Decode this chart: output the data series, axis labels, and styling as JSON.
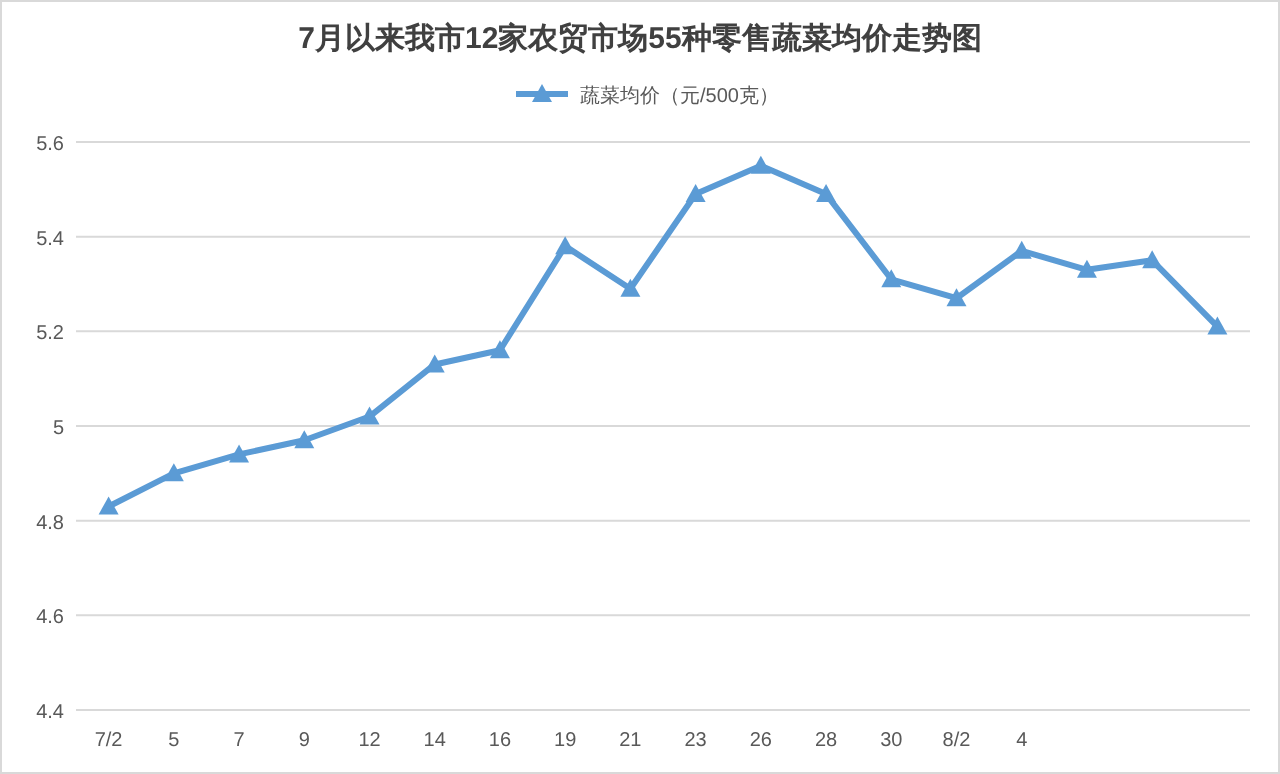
{
  "chart_data": {
    "type": "line",
    "title": "7月以来我市12家农贸市场55种零售蔬菜均价走势图",
    "categories": [
      "7/2",
      "5",
      "7",
      "9",
      "12",
      "14",
      "16",
      "19",
      "21",
      "23",
      "26",
      "28",
      "30",
      "8/2",
      "4",
      null,
      null,
      null
    ],
    "series": [
      {
        "name": "蔬菜均价（元/500克）",
        "color": "#5b9bd5",
        "values": [
          4.83,
          4.9,
          4.94,
          4.97,
          5.02,
          5.13,
          5.16,
          5.38,
          5.29,
          5.49,
          5.55,
          5.49,
          5.31,
          5.27,
          5.37,
          5.33,
          5.35,
          5.21
        ]
      }
    ],
    "ylim": [
      4.4,
      5.6
    ],
    "yticks": [
      4.4,
      4.6,
      4.8,
      5,
      5.2,
      5.4,
      5.6
    ],
    "grid": "y",
    "legend": "top",
    "marker": "triangle",
    "line_style": "solid"
  }
}
